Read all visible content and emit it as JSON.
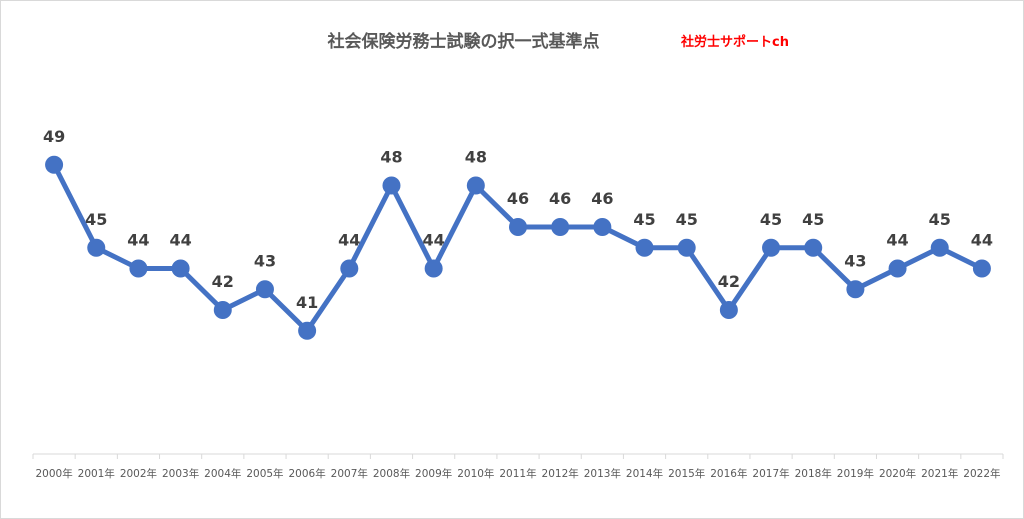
{
  "chart_data": {
    "type": "line",
    "title": "社会保険労務士試験の択一式基準点",
    "annotation": "社労士サポートch",
    "categories": [
      "2000年",
      "2001年",
      "2002年",
      "2003年",
      "2004年",
      "2005年",
      "2006年",
      "2007年",
      "2008年",
      "2009年",
      "2010年",
      "2011年",
      "2012年",
      "2013年",
      "2014年",
      "2015年",
      "2016年",
      "2017年",
      "2018年",
      "2019年",
      "2020年",
      "2021年",
      "2022年"
    ],
    "series": [
      {
        "values": [
          49,
          45,
          44,
          44,
          42,
          43,
          41,
          44,
          48,
          44,
          48,
          46,
          46,
          46,
          45,
          45,
          42,
          45,
          45,
          43,
          44,
          45,
          44
        ],
        "color": "#4472c4"
      }
    ],
    "ylim": [
      35,
      50
    ],
    "grid": false,
    "legend": "none",
    "xlabel": "",
    "ylabel": ""
  }
}
